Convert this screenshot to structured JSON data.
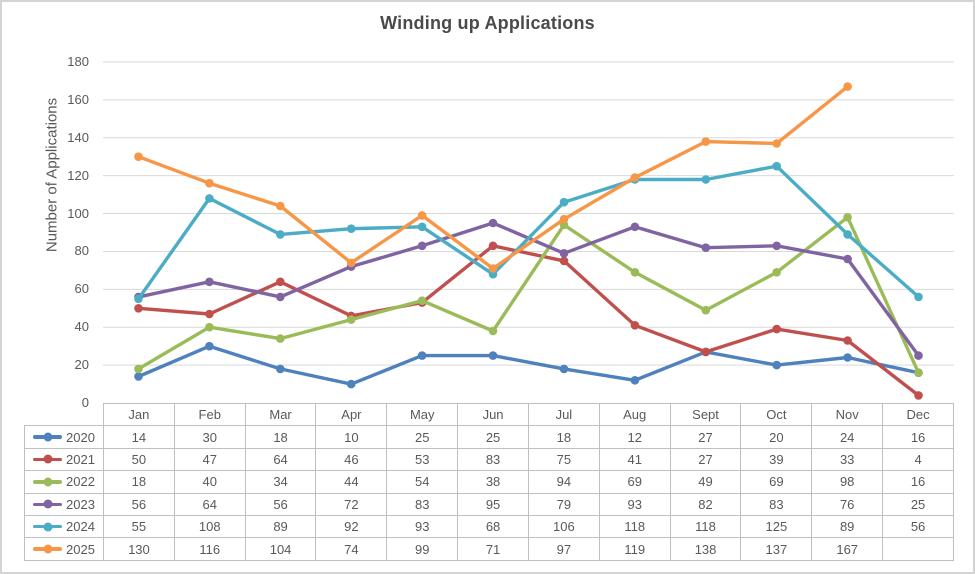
{
  "palette": {
    "frame_border": "#D6D3D3",
    "grid_color": "#D9D9D9",
    "table_border": "#BFBFBF",
    "axis_text": "#595959",
    "title_text": "#4A4A4A"
  },
  "chart_data": {
    "type": "line",
    "title": "Winding up Applications",
    "xlabel": "",
    "ylabel": "Number of Applications",
    "categories": [
      "Jan",
      "Feb",
      "Mar",
      "Apr",
      "May",
      "Jun",
      "Jul",
      "Aug",
      "Sept",
      "Oct",
      "Nov",
      "Dec"
    ],
    "ylim": [
      0,
      180
    ],
    "yticks": [
      0,
      20,
      40,
      60,
      80,
      100,
      120,
      140,
      160,
      180
    ],
    "grid": true,
    "legend_position": "data-table-left",
    "markers": "circle",
    "series": [
      {
        "name": "2020",
        "color": "#4F81BD",
        "values": [
          14,
          30,
          18,
          10,
          25,
          25,
          18,
          12,
          27,
          20,
          24,
          16
        ]
      },
      {
        "name": "2021",
        "color": "#C0504D",
        "values": [
          50,
          47,
          64,
          46,
          53,
          83,
          75,
          41,
          27,
          39,
          33,
          4
        ]
      },
      {
        "name": "2022",
        "color": "#9BBB59",
        "values": [
          18,
          40,
          34,
          44,
          54,
          38,
          94,
          69,
          49,
          69,
          98,
          16
        ]
      },
      {
        "name": "2023",
        "color": "#8064A2",
        "values": [
          56,
          64,
          56,
          72,
          83,
          95,
          79,
          93,
          82,
          83,
          76,
          25
        ]
      },
      {
        "name": "2024",
        "color": "#4BACC6",
        "values": [
          55,
          108,
          89,
          92,
          93,
          68,
          106,
          118,
          118,
          125,
          89,
          56
        ]
      },
      {
        "name": "2025",
        "color": "#F79646",
        "values": [
          130,
          116,
          104,
          74,
          99,
          71,
          97,
          119,
          138,
          137,
          167,
          null
        ]
      }
    ]
  }
}
